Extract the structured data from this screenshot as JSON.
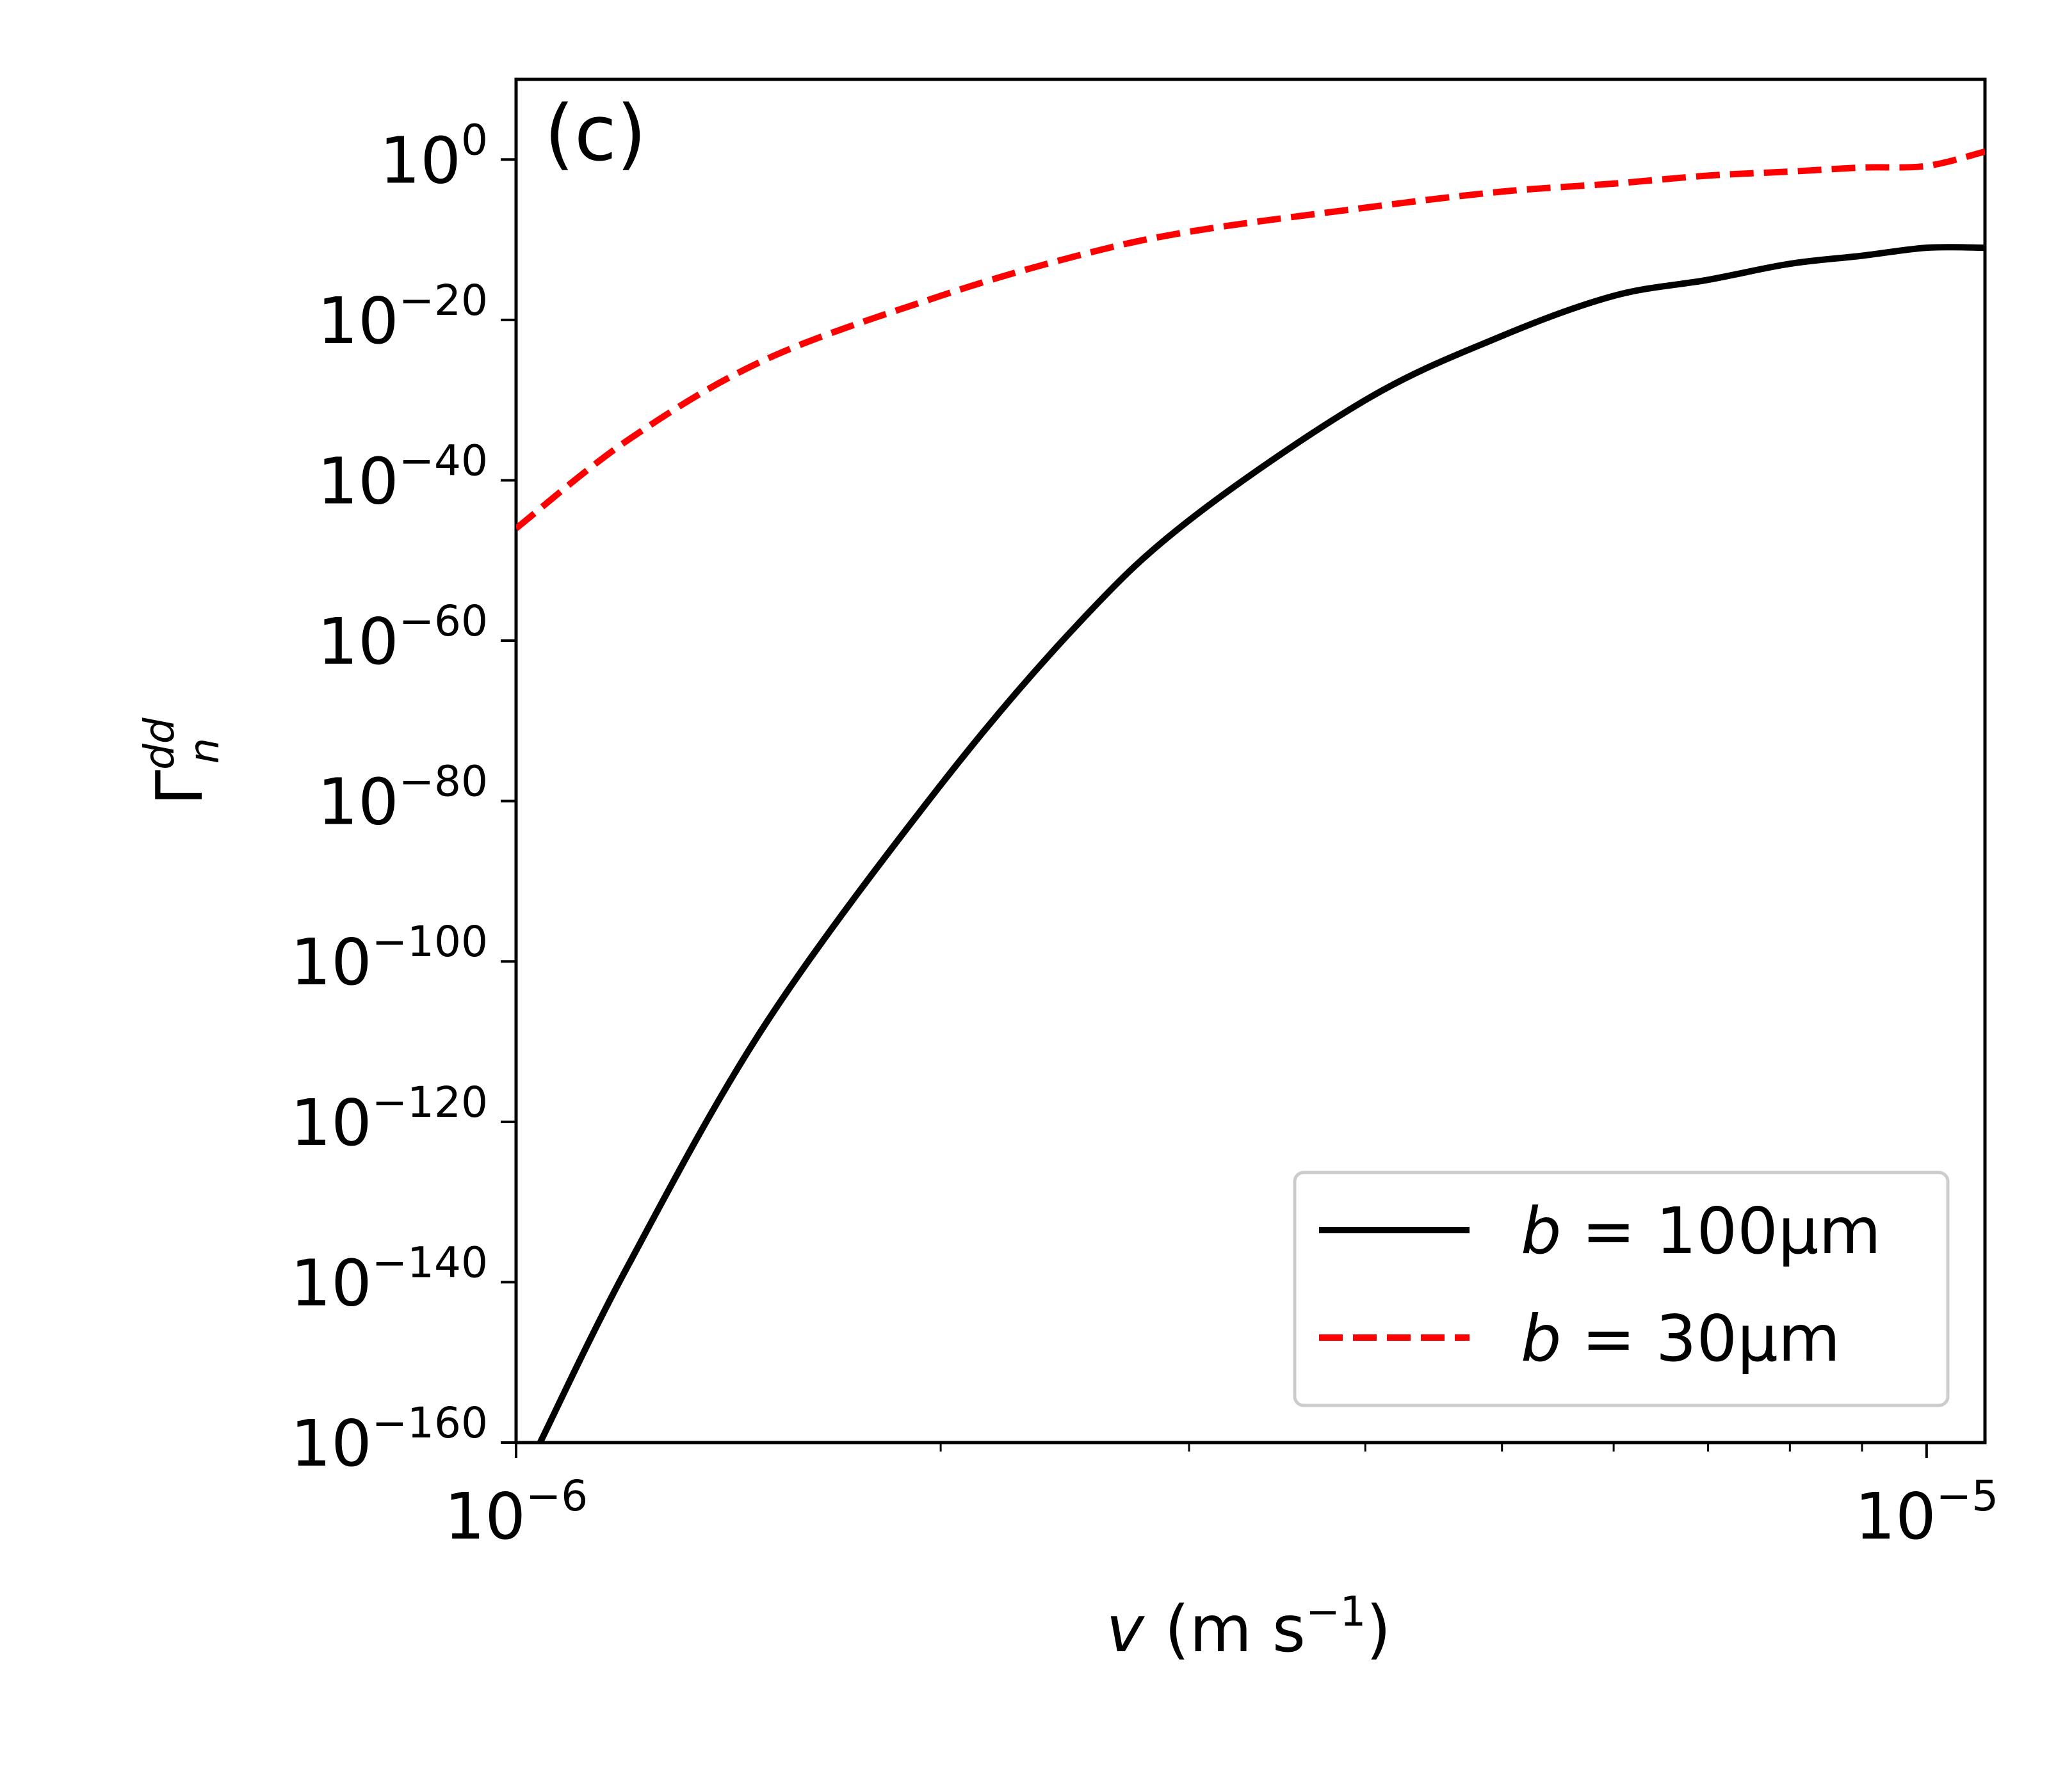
{
  "chart_data": {
    "type": "line",
    "panel_label": "(c)",
    "xlabel": {
      "var": "v",
      "unit_pre": " (m s",
      "unit_exp": "−1",
      "unit_post": ")"
    },
    "ylabel": {
      "base": "Γ",
      "sup": "dd",
      "sub": "n"
    },
    "x_scale": "log",
    "y_scale": "log",
    "xlim": [
      1e-06,
      1.1e-05
    ],
    "ylim_exponent": [
      -160,
      10
    ],
    "x_ticks": [
      {
        "value": 1e-06,
        "base": "10",
        "exp": "−6"
      },
      {
        "value": 1e-05,
        "base": "10",
        "exp": "−5"
      }
    ],
    "y_ticks": [
      {
        "exponent": 0,
        "base": "10",
        "exp": "0"
      },
      {
        "exponent": -20,
        "base": "10",
        "exp": "−20"
      },
      {
        "exponent": -40,
        "base": "10",
        "exp": "−40"
      },
      {
        "exponent": -60,
        "base": "10",
        "exp": "−60"
      },
      {
        "exponent": -80,
        "base": "10",
        "exp": "−80"
      },
      {
        "exponent": -100,
        "base": "10",
        "exp": "−100"
      },
      {
        "exponent": -120,
        "base": "10",
        "exp": "−120"
      },
      {
        "exponent": -140,
        "base": "10",
        "exp": "−140"
      },
      {
        "exponent": -160,
        "base": "10",
        "exp": "−160"
      }
    ],
    "legend": {
      "position": "lower-right"
    },
    "series": [
      {
        "name": "b = 100μm",
        "label": {
          "var": "b",
          "text": " = 100μm"
        },
        "color": "#000000",
        "style": "solid",
        "points": [
          [
            1.04e-06,
            -160
          ],
          [
            1.2e-06,
            -138
          ],
          [
            1.5e-06,
            -108
          ],
          [
            2e-06,
            -78
          ],
          [
            2.5e-06,
            -58
          ],
          [
            3e-06,
            -45
          ],
          [
            4e-06,
            -30
          ],
          [
            5e-06,
            -22
          ],
          [
            6e-06,
            -17
          ],
          [
            7e-06,
            -15
          ],
          [
            8e-06,
            -13
          ],
          [
            9e-06,
            -12
          ],
          [
            1e-05,
            -11
          ],
          [
            1.1e-05,
            -11
          ]
        ]
      },
      {
        "name": "b = 30μm",
        "label": {
          "var": "b",
          "text": " = 30μm"
        },
        "color": "#ff0000",
        "style": "dashed",
        "points": [
          [
            1e-06,
            -46
          ],
          [
            1.2e-06,
            -35
          ],
          [
            1.5e-06,
            -25
          ],
          [
            2e-06,
            -17
          ],
          [
            2.5e-06,
            -12
          ],
          [
            3e-06,
            -9
          ],
          [
            4e-06,
            -6
          ],
          [
            5e-06,
            -4
          ],
          [
            6e-06,
            -3
          ],
          [
            7e-06,
            -2
          ],
          [
            8e-06,
            -1.5
          ],
          [
            9e-06,
            -1
          ],
          [
            1e-05,
            -0.8
          ],
          [
            1.1e-05,
            1
          ]
        ]
      }
    ]
  }
}
